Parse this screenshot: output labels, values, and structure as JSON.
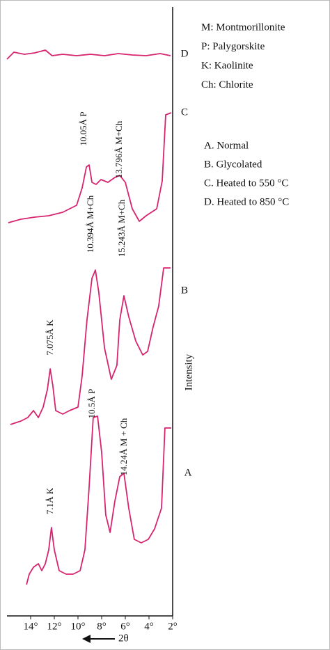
{
  "chart_data": {
    "type": "line",
    "x_label": "2θ",
    "y_label": "Intensity",
    "xlim": [
      16,
      2
    ],
    "ylim": [
      0,
      870
    ],
    "xticks": [
      {
        "value": 14,
        "label": "14°"
      },
      {
        "value": 12,
        "label": "12°"
      },
      {
        "value": 10,
        "label": "10°"
      },
      {
        "value": 8,
        "label": "8°"
      },
      {
        "value": 6,
        "label": "6°"
      },
      {
        "value": 4,
        "label": "4°"
      },
      {
        "value": 2,
        "label": "2°"
      }
    ],
    "color": "#d6246e",
    "series": [
      {
        "name": "D",
        "x": [
          16,
          15.41,
          14.53,
          13.65,
          12.76,
          12.18,
          11.29,
          10.12,
          8.94,
          7.76,
          6.59,
          5.41,
          4.24,
          3.06,
          2.18
        ],
        "values": [
          795,
          805,
          802,
          804,
          808,
          800,
          802,
          800,
          802,
          800,
          803,
          801,
          800,
          803,
          800
        ]
      },
      {
        "name": "C",
        "x": [
          15.88,
          14.82,
          13.65,
          12.47,
          11.29,
          10.12,
          9.65,
          9.29,
          9.06,
          8.82,
          8.47,
          8.06,
          7.47,
          6.88,
          6.47,
          6.0,
          5.41,
          4.82,
          4.24,
          3.35,
          2.88,
          2.59,
          2.12
        ],
        "values": [
          560,
          565,
          568,
          570,
          575,
          585,
          610,
          640,
          643,
          618,
          615,
          622,
          618,
          625,
          628,
          618,
          580,
          562,
          570,
          580,
          620,
          715,
          718
        ]
      },
      {
        "name": "B",
        "x": [
          15.71,
          14.82,
          14.24,
          13.76,
          13.35,
          12.94,
          12.59,
          12.35,
          12.12,
          11.88,
          11.29,
          10.71,
          10.0,
          9.65,
          9.24,
          8.82,
          8.53,
          8.24,
          7.76,
          7.18,
          6.71,
          6.47,
          6.12,
          5.71,
          5.12,
          4.53,
          4.12,
          3.65,
          3.18,
          2.76,
          2.18
        ],
        "values": [
          270,
          275,
          280,
          290,
          280,
          295,
          320,
          350,
          325,
          290,
          285,
          290,
          295,
          340,
          420,
          480,
          492,
          460,
          380,
          335,
          355,
          420,
          455,
          425,
          390,
          370,
          375,
          410,
          440,
          495,
          495
        ]
      },
      {
        "name": "A",
        "x": [
          14.35,
          14.12,
          13.76,
          13.35,
          13.06,
          12.76,
          12.47,
          12.24,
          12.0,
          11.59,
          11.0,
          10.41,
          9.82,
          9.41,
          9.06,
          8.71,
          8.35,
          8.0,
          7.65,
          7.29,
          6.88,
          6.47,
          6.12,
          5.71,
          5.24,
          4.65,
          4.06,
          3.53,
          2.94,
          2.65,
          2.12
        ],
        "values": [
          40,
          55,
          65,
          70,
          60,
          70,
          90,
          122,
          90,
          60,
          55,
          55,
          60,
          90,
          180,
          280,
          282,
          230,
          140,
          115,
          160,
          195,
          200,
          150,
          105,
          100,
          105,
          120,
          150,
          265,
          265
        ]
      }
    ],
    "annotations": [
      "10.05Å P",
      "13.796Å M+Ch",
      "10.394Å M+Ch",
      "15.243Å M+Ch",
      "7.075Å K",
      "10.5Å P",
      "14.24Å M + Ch",
      "7.1Å K"
    ],
    "mineral_key": [
      "M: Montmorillonite",
      "P: Palygorskite",
      "K: Kaolinite",
      "Ch: Chlorite"
    ],
    "sample_key": [
      "A. Normal",
      "B. Glycolated",
      "C. Heated to 550 °C",
      "D. Heated to 850 °C"
    ]
  }
}
